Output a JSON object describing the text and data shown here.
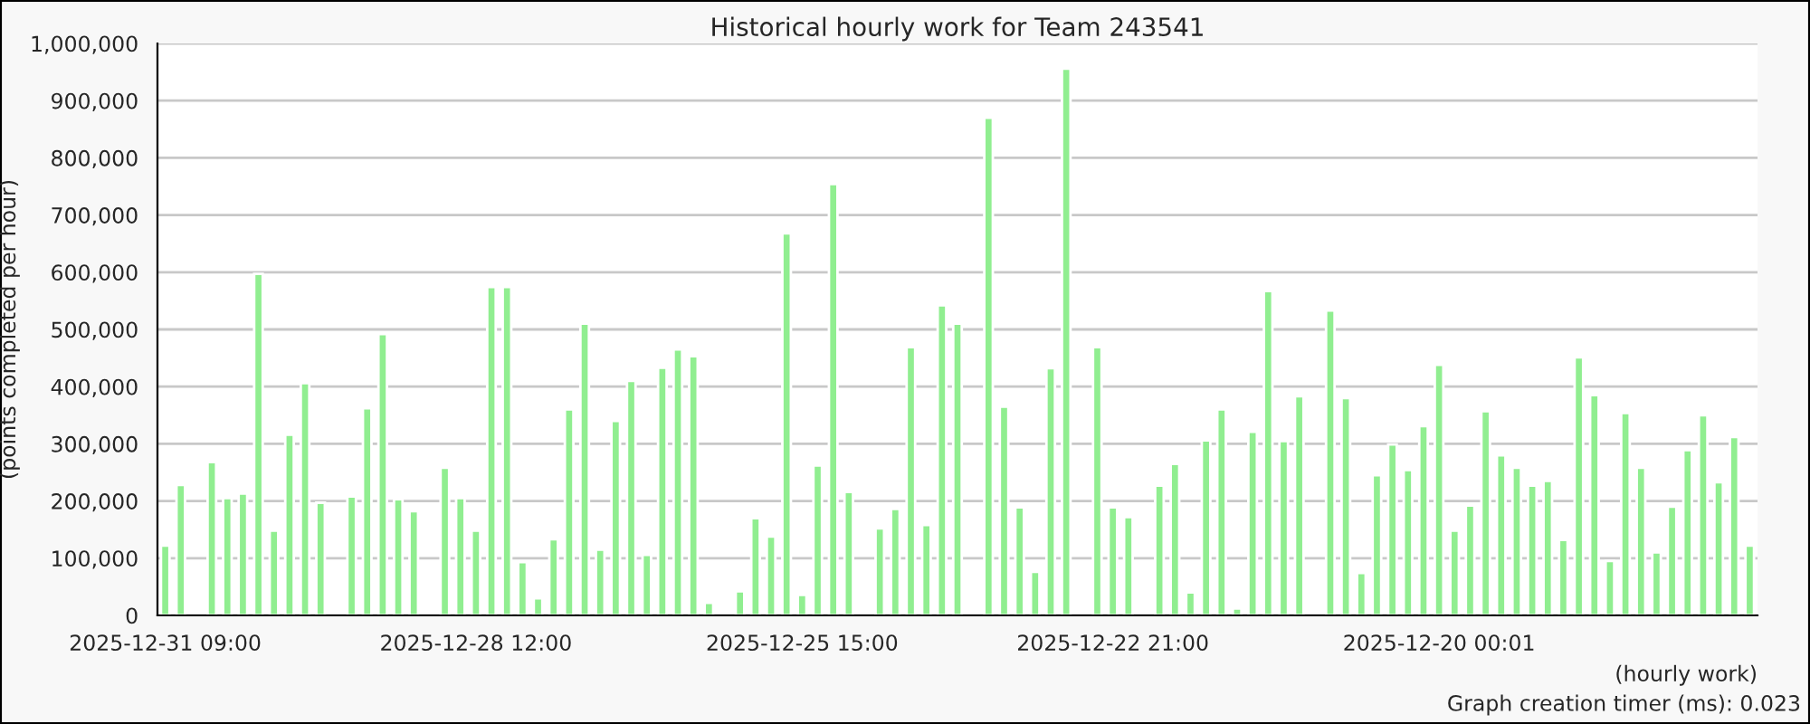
{
  "chart_data": {
    "type": "bar",
    "title": "Historical hourly work for Team 243541",
    "xlabel": "(hourly work)",
    "ylabel": "(points completed per hour)",
    "annotations": [
      "Graph creation timer (ms): 0.023"
    ],
    "categories": [
      "2025-12-31 09:00",
      null,
      null,
      null,
      null,
      null,
      null,
      null,
      null,
      null,
      null,
      null,
      null,
      null,
      null,
      null,
      null,
      null,
      null,
      null,
      "2025-12-28 12:00",
      null,
      null,
      null,
      null,
      null,
      null,
      null,
      null,
      null,
      null,
      null,
      null,
      null,
      null,
      null,
      null,
      null,
      null,
      null,
      null,
      "2025-12-25 15:00",
      null,
      null,
      null,
      null,
      null,
      null,
      null,
      null,
      null,
      null,
      null,
      null,
      null,
      null,
      null,
      null,
      null,
      null,
      null,
      "2025-12-22 21:00",
      null,
      null,
      null,
      null,
      null,
      null,
      null,
      null,
      null,
      null,
      null,
      null,
      null,
      null,
      null,
      null,
      null,
      null,
      null,
      null,
      "2025-12-20 00:01",
      null,
      null,
      null,
      null,
      null,
      null,
      null,
      null,
      null,
      null,
      null,
      null,
      null,
      null,
      null,
      null,
      null,
      null,
      null,
      null
    ],
    "values": [
      122000,
      228000,
      null,
      268000,
      205000,
      213000,
      597000,
      148000,
      316000,
      406000,
      197000,
      null,
      208000,
      362000,
      492000,
      203000,
      182000,
      null,
      258000,
      205000,
      148000,
      574000,
      574000,
      93000,
      30000,
      133000,
      360000,
      510000,
      115000,
      340000,
      410000,
      106000,
      433000,
      465000,
      453000,
      22000,
      null,
      42000,
      170000,
      138000,
      668000,
      36000,
      262000,
      754000,
      216000,
      null,
      152000,
      186000,
      469000,
      158000,
      542000,
      510000,
      null,
      870000,
      365000,
      189000,
      76000,
      432000,
      956000,
      null,
      469000,
      189000,
      172000,
      null,
      227000,
      265000,
      40000,
      306000,
      360000,
      12000,
      321000,
      567000,
      305000,
      383000,
      null,
      533000,
      380000,
      74000,
      245000,
      299000,
      254000,
      331000,
      438000,
      148000,
      192000,
      357000,
      280000,
      258000,
      227000,
      235000,
      132000,
      451000,
      385000,
      95000,
      354000,
      258000,
      110000,
      190000,
      289000,
      350000,
      233000,
      312000,
      122000
    ],
    "color": "#90ee90",
    "ylim": [
      0,
      1000000
    ],
    "yticks": [
      0,
      {
        "value": 100000,
        "label": "100,000"
      },
      {
        "value": 200000,
        "label": "200,000"
      },
      {
        "value": 300000,
        "label": "300,000"
      },
      {
        "value": 400000,
        "label": "400,000"
      },
      {
        "value": 500000,
        "label": "500,000"
      },
      {
        "value": 600000,
        "label": "600,000"
      },
      {
        "value": 700000,
        "label": "700,000"
      },
      {
        "value": 800000,
        "label": "800,000"
      },
      {
        "value": 900000,
        "label": "900,000"
      },
      {
        "value": 1000000,
        "label": "1,000,000"
      }
    ],
    "grid": "y",
    "legend": false
  }
}
